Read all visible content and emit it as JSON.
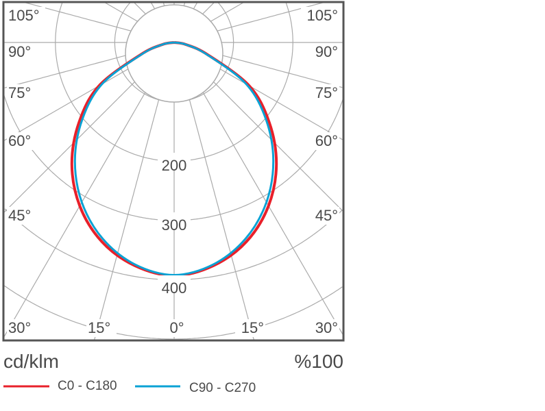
{
  "chart_data": {
    "type": "polar-line",
    "title": "",
    "unit_label": "cd/klm",
    "scale_label": "%100",
    "radial_ticks": [
      200,
      300,
      400
    ],
    "radial_range": [
      0,
      500
    ],
    "angle_labels_left": [
      "105°",
      "90°",
      "75°",
      "60°",
      "45°",
      "30°",
      "15°"
    ],
    "angle_labels_bottom": [
      "0°"
    ],
    "angle_labels_right": [
      "15°",
      "30°",
      "45°",
      "60°",
      "75°",
      "90°",
      "105°"
    ],
    "angles_deg": [
      0,
      10,
      20,
      30,
      40,
      50,
      60,
      70,
      80,
      90
    ],
    "series": [
      {
        "name": "C0 - C180",
        "color": "#e8202a",
        "values": [
          393,
          382,
          357,
          318,
          268,
          209,
          146,
          60,
          20,
          0
        ]
      },
      {
        "name": "C90 - C270",
        "color": "#0aa2d4",
        "values": [
          392,
          380,
          352,
          311,
          260,
          202,
          140,
          58,
          20,
          0
        ]
      }
    ],
    "grid": true,
    "legend_position": "bottom"
  }
}
